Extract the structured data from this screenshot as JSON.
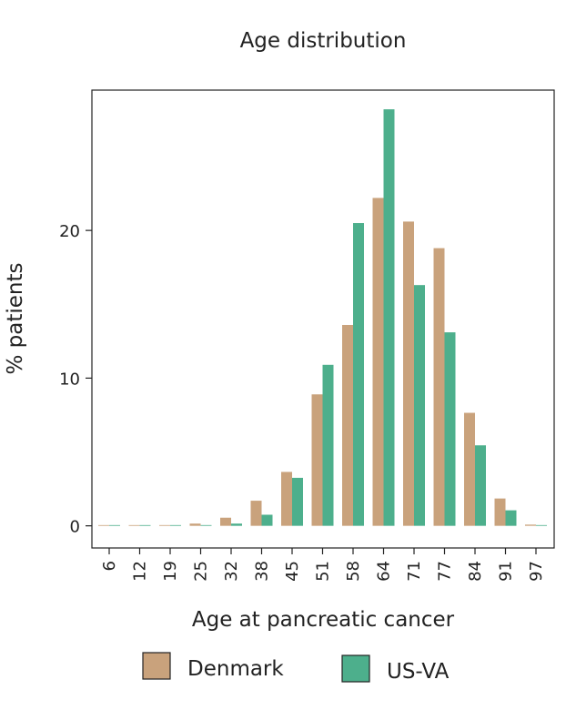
{
  "chart_data": {
    "type": "bar",
    "title": "Age distribution",
    "xlabel": "Age at pancreatic cancer",
    "ylabel": "% patients",
    "categories": [
      "6",
      "12",
      "19",
      "25",
      "32",
      "38",
      "45",
      "51",
      "58",
      "64",
      "71",
      "77",
      "84",
      "91",
      "97"
    ],
    "series": [
      {
        "name": "Denmark",
        "color": "#C9A27C",
        "values": [
          0.0,
          0.02,
          0.05,
          0.15,
          0.55,
          1.7,
          3.65,
          8.9,
          13.6,
          22.2,
          20.6,
          18.8,
          7.65,
          1.85,
          0.08
        ]
      },
      {
        "name": "US-VA",
        "color": "#4DAF8C",
        "values": [
          0.0,
          0.0,
          0.0,
          0.05,
          0.15,
          0.75,
          3.25,
          10.9,
          20.5,
          28.2,
          16.3,
          13.1,
          5.45,
          1.05,
          0.03
        ]
      }
    ],
    "yticks": [
      0,
      10,
      20
    ],
    "ylim": [
      -1.5,
      29.5
    ],
    "grid": false,
    "legend_position": "bottom"
  }
}
